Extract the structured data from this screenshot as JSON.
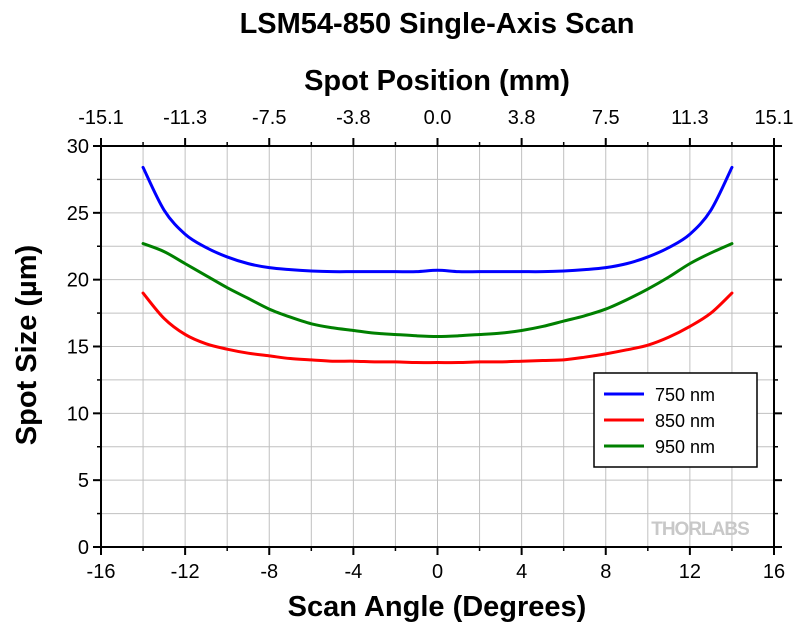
{
  "chart_data": {
    "type": "line",
    "title": "LSM54-850 Single-Axis Scan",
    "xlabel": "Scan Angle (Degrees)",
    "x2label": "Spot Position (mm)",
    "ylabel": "Spot Size (µm)",
    "xlim": [
      -16,
      16
    ],
    "ylim": [
      0,
      30
    ],
    "x_ticks": [
      "-16",
      "-12",
      "-8",
      "-4",
      "0",
      "4",
      "8",
      "12",
      "16"
    ],
    "x2_ticks": [
      "-15.1",
      "-11.3",
      "-7.5",
      "-3.8",
      "0.0",
      "3.8",
      "7.5",
      "11.3",
      "15.1"
    ],
    "y_ticks": [
      "0",
      "5",
      "10",
      "15",
      "20",
      "25",
      "30"
    ],
    "grid": true,
    "legend_position": "lower-right",
    "series": [
      {
        "name": "750 nm",
        "color": "#0000ff",
        "x": [
          -14,
          -13,
          -12,
          -11,
          -10,
          -9,
          -8,
          -7,
          -6,
          -5,
          -4,
          -3,
          -2,
          -1,
          0,
          1,
          2,
          3,
          4,
          5,
          6,
          7,
          8,
          9,
          10,
          11,
          12,
          13,
          14
        ],
        "y": [
          28.4,
          25.2,
          23.4,
          22.4,
          21.7,
          21.2,
          20.9,
          20.75,
          20.65,
          20.6,
          20.6,
          20.6,
          20.6,
          20.6,
          20.7,
          20.6,
          20.6,
          20.6,
          20.6,
          20.6,
          20.65,
          20.75,
          20.9,
          21.2,
          21.7,
          22.4,
          23.4,
          25.2,
          28.4
        ]
      },
      {
        "name": "850 nm",
        "color": "#ff0000",
        "x": [
          -14,
          -13,
          -12,
          -11,
          -10,
          -9,
          -8,
          -7,
          -6,
          -5,
          -4,
          -3,
          -2,
          -1,
          0,
          1,
          2,
          3,
          4,
          5,
          6,
          7,
          8,
          9,
          10,
          11,
          12,
          13,
          14
        ],
        "y": [
          19.0,
          17.1,
          15.9,
          15.2,
          14.8,
          14.5,
          14.3,
          14.1,
          14.0,
          13.9,
          13.9,
          13.85,
          13.85,
          13.8,
          13.8,
          13.8,
          13.85,
          13.85,
          13.9,
          13.95,
          14.0,
          14.2,
          14.45,
          14.75,
          15.1,
          15.7,
          16.5,
          17.5,
          19.0
        ]
      },
      {
        "name": "950 nm",
        "color": "#008000",
        "x": [
          -14,
          -13,
          -12,
          -11,
          -10,
          -9,
          -8,
          -7,
          -6,
          -5,
          -4,
          -3,
          -2,
          -1,
          0,
          1,
          2,
          3,
          4,
          5,
          6,
          7,
          8,
          9,
          10,
          11,
          12,
          13,
          14
        ],
        "y": [
          22.7,
          22.1,
          21.2,
          20.3,
          19.4,
          18.6,
          17.8,
          17.2,
          16.7,
          16.4,
          16.2,
          16.0,
          15.9,
          15.8,
          15.75,
          15.8,
          15.9,
          16.0,
          16.2,
          16.5,
          16.9,
          17.3,
          17.8,
          18.5,
          19.3,
          20.2,
          21.2,
          22.0,
          22.7
        ]
      }
    ]
  },
  "watermark": "THORLABS"
}
